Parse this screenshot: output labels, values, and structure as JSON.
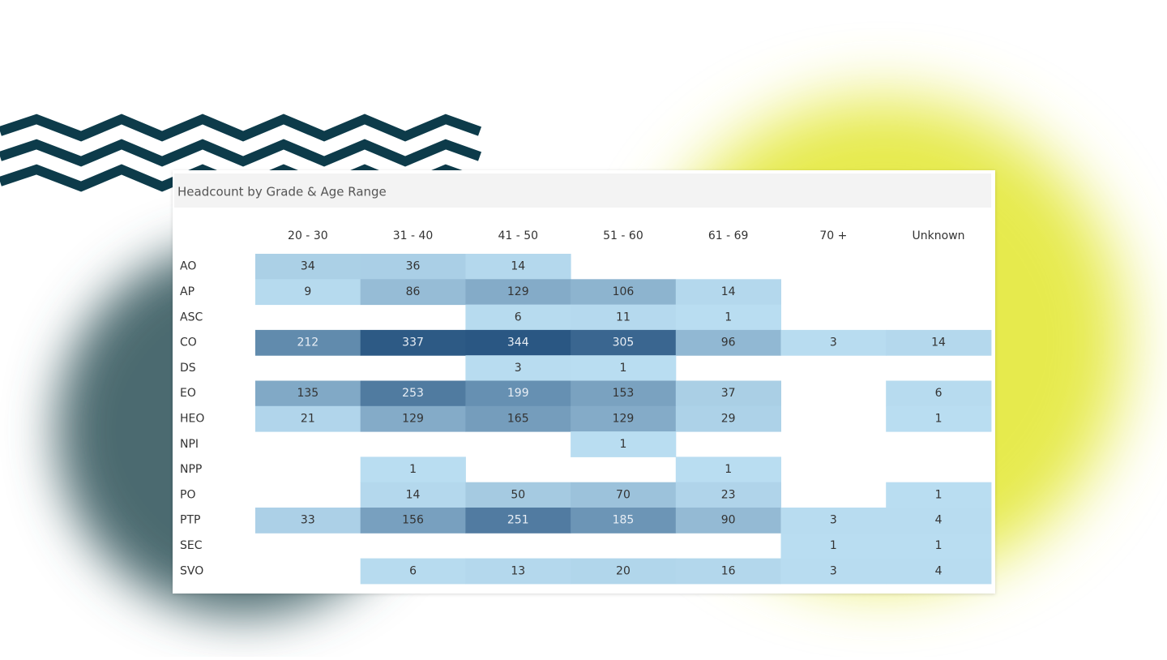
{
  "chart_data": {
    "type": "heatmap",
    "title": "Headcount by Grade & Age Range",
    "columns": [
      "20 - 30",
      "31 - 40",
      "41 - 50",
      "51 - 60",
      "61 - 69",
      "70 +",
      "Unknown"
    ],
    "rows": [
      "AO",
      "AP",
      "ASC",
      "CO",
      "DS",
      "EO",
      "HEO",
      "NPI",
      "NPP",
      "PO",
      "PTP",
      "SEC",
      "SVO"
    ],
    "values": [
      [
        34,
        36,
        14,
        null,
        null,
        null,
        null
      ],
      [
        9,
        86,
        129,
        106,
        14,
        null,
        null
      ],
      [
        null,
        null,
        6,
        11,
        1,
        null,
        null
      ],
      [
        212,
        337,
        344,
        305,
        96,
        3,
        14
      ],
      [
        null,
        null,
        3,
        1,
        null,
        null,
        null
      ],
      [
        135,
        253,
        199,
        153,
        37,
        null,
        6
      ],
      [
        21,
        129,
        165,
        129,
        29,
        null,
        1
      ],
      [
        null,
        null,
        null,
        1,
        null,
        null,
        null
      ],
      [
        null,
        1,
        null,
        null,
        1,
        null,
        null
      ],
      [
        null,
        14,
        50,
        70,
        23,
        null,
        1
      ],
      [
        33,
        156,
        251,
        185,
        90,
        3,
        4
      ],
      [
        null,
        null,
        null,
        null,
        null,
        1,
        1
      ],
      [
        null,
        6,
        13,
        20,
        16,
        3,
        4
      ]
    ],
    "color_range": [
      "#b9ddf1",
      "#2a5783"
    ]
  }
}
